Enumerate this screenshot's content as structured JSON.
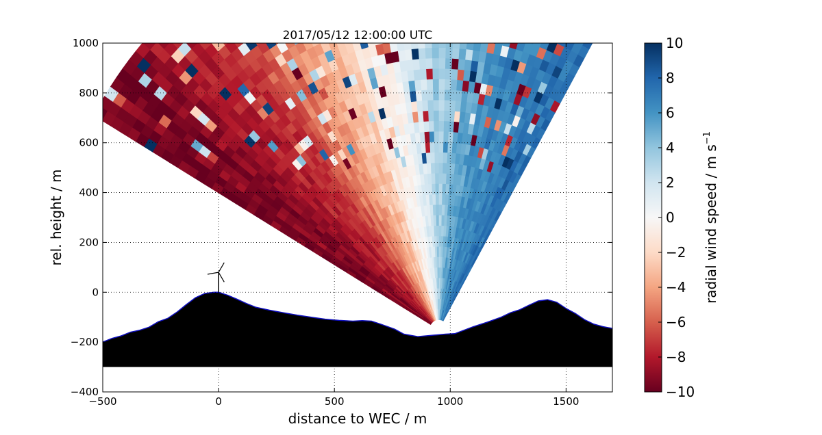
{
  "chart_data": {
    "type": "heatmap",
    "title": "2017/05/12 12:00:00 UTC",
    "xlabel": "distance to WEC / m",
    "ylabel": "rel. height / m",
    "xlim": [
      -500,
      1700
    ],
    "ylim": [
      -400,
      1000
    ],
    "x_ticks": [
      -500,
      0,
      500,
      1000,
      1500
    ],
    "y_ticks": [
      -400,
      -200,
      0,
      200,
      400,
      600,
      800,
      1000
    ],
    "grid": true,
    "colorbar": {
      "label": "radial wind speed / m s",
      "label_superscript": "−1",
      "range": [
        -10,
        10
      ],
      "ticks": [
        -10,
        -8,
        -6,
        -4,
        -2,
        0,
        2,
        4,
        6,
        8,
        10
      ],
      "colormap": "RdBu"
    },
    "scan": {
      "origin": [
        950,
        -150
      ],
      "max_range_m": 1690,
      "elevation_range_deg": [
        60,
        150
      ]
    },
    "terrain_profile": [
      [
        -500,
        -200
      ],
      [
        -460,
        -185
      ],
      [
        -420,
        -175
      ],
      [
        -380,
        -160
      ],
      [
        -340,
        -152
      ],
      [
        -300,
        -140
      ],
      [
        -260,
        -118
      ],
      [
        -220,
        -105
      ],
      [
        -180,
        -80
      ],
      [
        -140,
        -50
      ],
      [
        -100,
        -22
      ],
      [
        -60,
        -5
      ],
      [
        -20,
        0
      ],
      [
        0,
        0
      ],
      [
        40,
        -12
      ],
      [
        80,
        -28
      ],
      [
        120,
        -45
      ],
      [
        160,
        -60
      ],
      [
        220,
        -72
      ],
      [
        280,
        -82
      ],
      [
        340,
        -92
      ],
      [
        400,
        -100
      ],
      [
        460,
        -108
      ],
      [
        520,
        -113
      ],
      [
        580,
        -116
      ],
      [
        620,
        -114
      ],
      [
        660,
        -116
      ],
      [
        700,
        -128
      ],
      [
        760,
        -148
      ],
      [
        800,
        -168
      ],
      [
        860,
        -178
      ],
      [
        920,
        -173
      ],
      [
        980,
        -168
      ],
      [
        1020,
        -166
      ],
      [
        1060,
        -152
      ],
      [
        1100,
        -138
      ],
      [
        1160,
        -120
      ],
      [
        1220,
        -100
      ],
      [
        1260,
        -82
      ],
      [
        1300,
        -70
      ],
      [
        1340,
        -52
      ],
      [
        1380,
        -35
      ],
      [
        1420,
        -30
      ],
      [
        1460,
        -40
      ],
      [
        1500,
        -65
      ],
      [
        1540,
        -85
      ],
      [
        1580,
        -110
      ],
      [
        1620,
        -128
      ],
      [
        1660,
        -138
      ],
      [
        1700,
        -145
      ]
    ],
    "terrain_base": -300,
    "wec": {
      "x": 0,
      "hub_height": 80,
      "blade_length": 45
    }
  }
}
